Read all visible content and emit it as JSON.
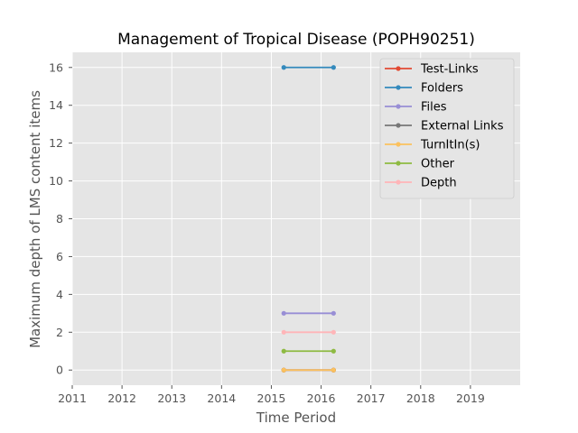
{
  "chart_data": {
    "type": "line",
    "title": "Management of Tropical Disease (POPH90251)",
    "xlabel": "Time Period",
    "ylabel": "Maximum depth of LMS content items",
    "xlim": [
      2011,
      2020
    ],
    "ylim": [
      -0.8,
      16.8
    ],
    "x_ticks": [
      "2011",
      "2012",
      "2013",
      "2014",
      "2015",
      "2016",
      "2017",
      "2018",
      "2019"
    ],
    "y_ticks": [
      "0",
      "2",
      "4",
      "6",
      "8",
      "10",
      "12",
      "14",
      "16"
    ],
    "grid": true,
    "legend_position": "top-right",
    "x": [
      2015.25,
      2016.25
    ],
    "series": [
      {
        "name": "Test-Links",
        "color": "#E24A33",
        "values": [
          0,
          0
        ]
      },
      {
        "name": "Folders",
        "color": "#348ABD",
        "values": [
          16,
          16
        ]
      },
      {
        "name": "Files",
        "color": "#988ED5",
        "values": [
          3,
          3
        ]
      },
      {
        "name": "External Links",
        "color": "#777777",
        "values": [
          0,
          0
        ]
      },
      {
        "name": "TurnItIn(s)",
        "color": "#FBC15E",
        "values": [
          0,
          0
        ]
      },
      {
        "name": "Other",
        "color": "#8EBA42",
        "values": [
          1,
          1
        ]
      },
      {
        "name": "Depth",
        "color": "#FFB5B8",
        "values": [
          2,
          2
        ]
      }
    ]
  }
}
